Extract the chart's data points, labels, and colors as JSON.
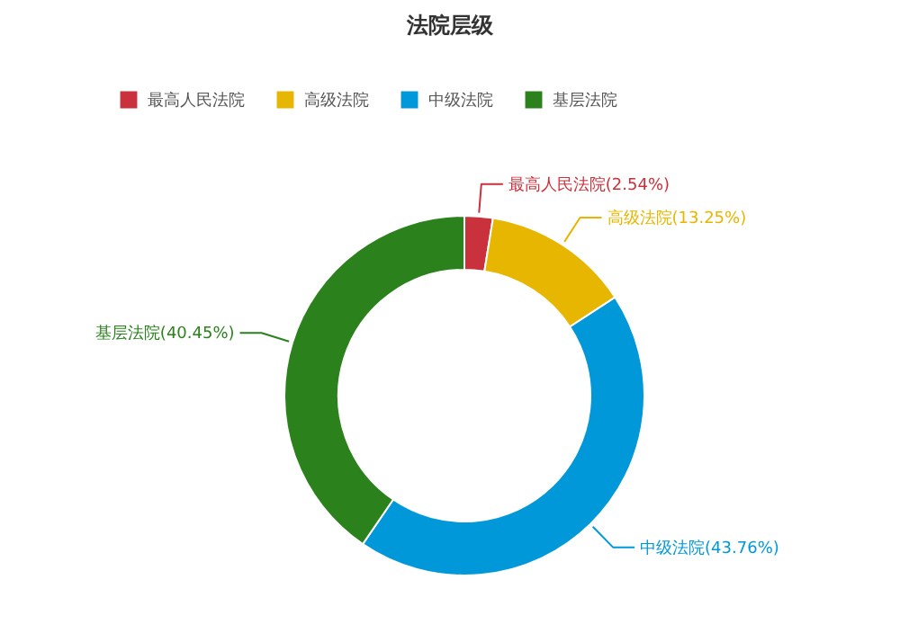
{
  "chart_data": {
    "type": "donut",
    "title": "法院层级",
    "categories": [
      "最高人民法院",
      "高级法院",
      "中级法院",
      "基层法院"
    ],
    "values": [
      2.54,
      13.25,
      43.76,
      40.45
    ],
    "colors": [
      "#c9313d",
      "#e6b600",
      "#0098d9",
      "#2b821d"
    ],
    "value_labels": [
      "最高人民法院(2.54%)",
      "高级法院(13.25%)",
      "中级法院(43.76%)",
      "基层法院(40.45%)"
    ],
    "legend": "top"
  }
}
